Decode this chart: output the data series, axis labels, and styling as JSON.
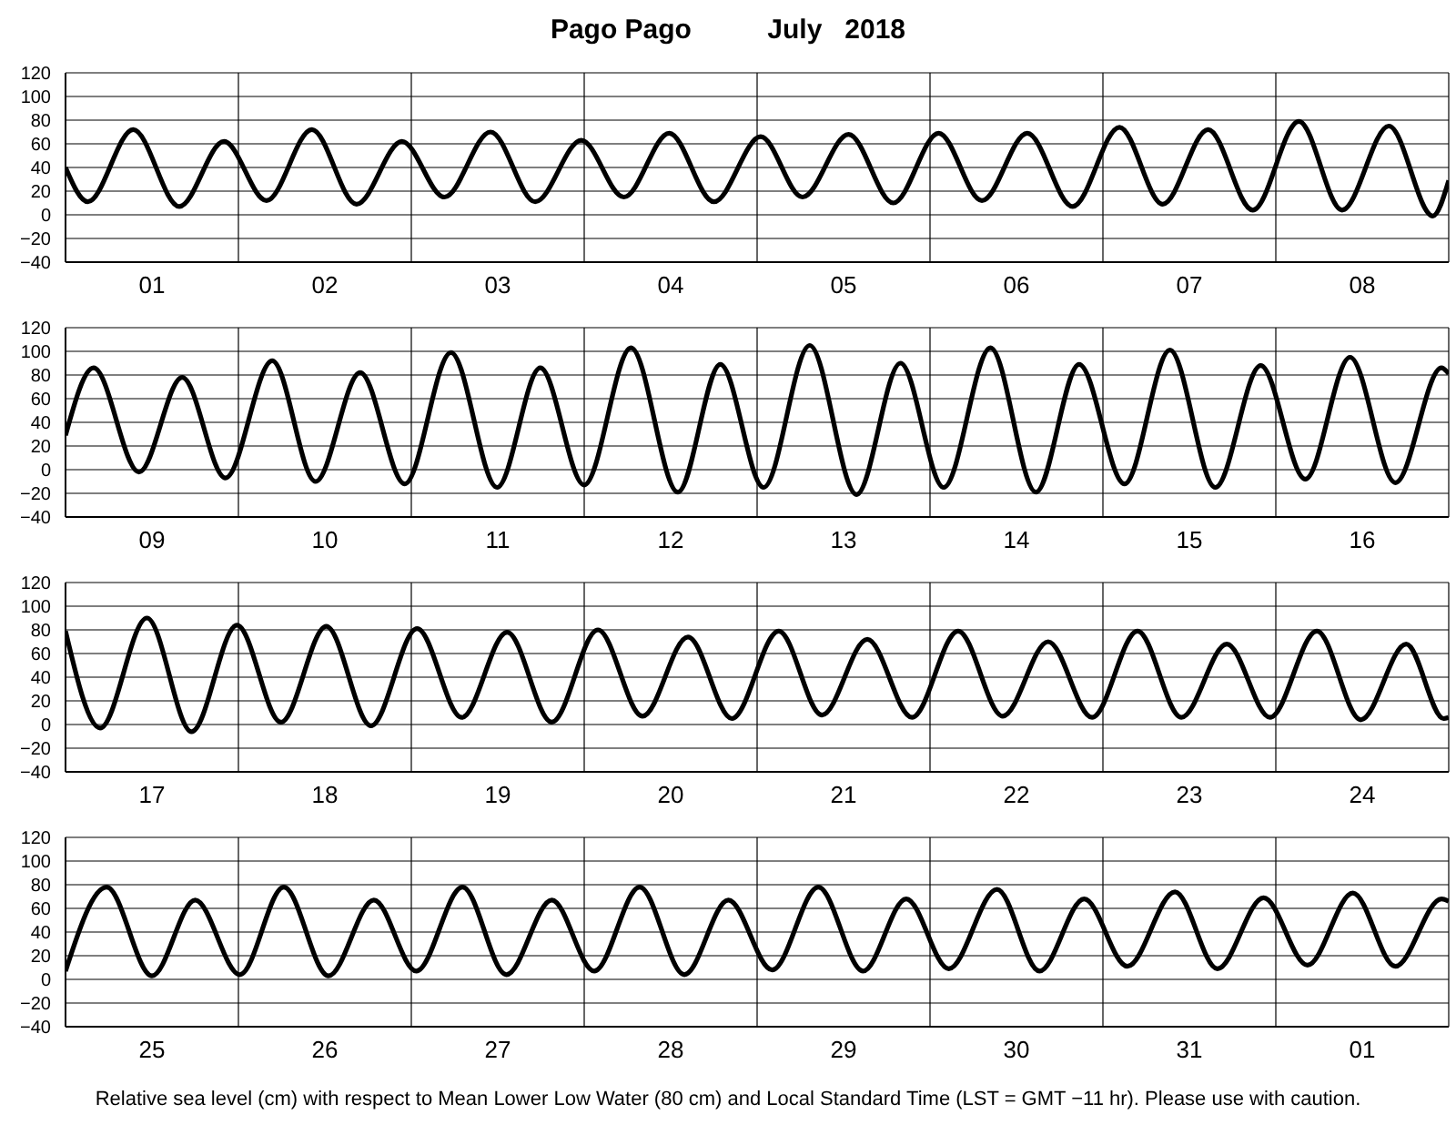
{
  "chart_data": [
    {
      "type": "line",
      "title": "Pago Pago          July   2018",
      "color": "#000000",
      "marker": "none",
      "line_style": "solid",
      "grid": true,
      "xlim": [
        "2018-07-01T00:00",
        "2018-07-09T00:00"
      ],
      "ylim": [
        -40,
        120
      ],
      "yticks": [
        -40,
        -20,
        0,
        20,
        40,
        60,
        80,
        100,
        120
      ],
      "xticks": [
        {
          "value": "2018-07-01T00:00",
          "label": null
        },
        {
          "value": "2018-07-01T12:00",
          "label": "01"
        },
        {
          "value": "2018-07-02T00:00",
          "label": null
        },
        {
          "value": "2018-07-02T12:00",
          "label": "02"
        },
        {
          "value": "2018-07-03T00:00",
          "label": null
        },
        {
          "value": "2018-07-03T12:00",
          "label": "03"
        },
        {
          "value": "2018-07-04T00:00",
          "label": null
        },
        {
          "value": "2018-07-04T12:00",
          "label": "04"
        },
        {
          "value": "2018-07-05T00:00",
          "label": null
        },
        {
          "value": "2018-07-05T12:00",
          "label": "05"
        },
        {
          "value": "2018-07-06T00:00",
          "label": null
        },
        {
          "value": "2018-07-06T12:00",
          "label": "06"
        },
        {
          "value": "2018-07-07T00:00",
          "label": null
        },
        {
          "value": "2018-07-07T12:00",
          "label": "07"
        },
        {
          "value": "2018-07-08T00:00",
          "label": null
        },
        {
          "value": "2018-07-08T12:00",
          "label": "08"
        },
        {
          "value": "2018-07-09T00:00",
          "label": null
        }
      ],
      "x": [
        "2018-07-01T00:00",
        "2018-07-01T03:06",
        "2018-07-01T09:24",
        "2018-07-01T15:48",
        "2018-07-01T22:00",
        "2018-07-02T03:54",
        "2018-07-02T10:12",
        "2018-07-02T16:24",
        "2018-07-02T22:42",
        "2018-07-03T04:36",
        "2018-07-03T11:00",
        "2018-07-03T17:12",
        "2018-07-03T23:36",
        "2018-07-04T05:30",
        "2018-07-04T11:48",
        "2018-07-04T18:00",
        "2018-07-05T00:30",
        "2018-07-05T06:18",
        "2018-07-05T12:42",
        "2018-07-05T18:54",
        "2018-07-06T01:12",
        "2018-07-06T07:12",
        "2018-07-06T13:30",
        "2018-07-06T19:48",
        "2018-07-07T02:18",
        "2018-07-07T08:18",
        "2018-07-07T14:36",
        "2018-07-07T20:48",
        "2018-07-08T03:12",
        "2018-07-08T09:12",
        "2018-07-08T15:42",
        "2018-07-08T21:48",
        "2018-07-09T00:00"
      ],
      "values": [
        40,
        11,
        72,
        7,
        62,
        12,
        72,
        9,
        62,
        15,
        70,
        11,
        63,
        15,
        69,
        11,
        66,
        15,
        68,
        10,
        69,
        12,
        69,
        7,
        74,
        9,
        72,
        4,
        79,
        4,
        75,
        -1,
        29
      ]
    },
    {
      "type": "line",
      "color": "#000000",
      "marker": "none",
      "line_style": "solid",
      "grid": true,
      "xlim": [
        "2018-07-09T00:00",
        "2018-07-17T00:00"
      ],
      "ylim": [
        -40,
        120
      ],
      "yticks": [
        -40,
        -20,
        0,
        20,
        40,
        60,
        80,
        100,
        120
      ],
      "xticks": [
        {
          "value": "2018-07-09T00:00",
          "label": null
        },
        {
          "value": "2018-07-09T12:00",
          "label": "09"
        },
        {
          "value": "2018-07-10T00:00",
          "label": null
        },
        {
          "value": "2018-07-10T12:00",
          "label": "10"
        },
        {
          "value": "2018-07-11T00:00",
          "label": null
        },
        {
          "value": "2018-07-11T12:00",
          "label": "11"
        },
        {
          "value": "2018-07-12T00:00",
          "label": null
        },
        {
          "value": "2018-07-12T12:00",
          "label": "12"
        },
        {
          "value": "2018-07-13T00:00",
          "label": null
        },
        {
          "value": "2018-07-13T12:00",
          "label": "13"
        },
        {
          "value": "2018-07-14T00:00",
          "label": null
        },
        {
          "value": "2018-07-14T12:00",
          "label": "14"
        },
        {
          "value": "2018-07-15T00:00",
          "label": null
        },
        {
          "value": "2018-07-15T12:00",
          "label": "15"
        },
        {
          "value": "2018-07-16T00:00",
          "label": null
        },
        {
          "value": "2018-07-16T12:00",
          "label": "16"
        },
        {
          "value": "2018-07-17T00:00",
          "label": null
        }
      ],
      "x": [
        "2018-07-09T00:00",
        "2018-07-09T03:54",
        "2018-07-09T10:12",
        "2018-07-09T16:12",
        "2018-07-09T22:12",
        "2018-07-10T04:42",
        "2018-07-10T10:42",
        "2018-07-10T16:54",
        "2018-07-10T23:06",
        "2018-07-11T05:30",
        "2018-07-11T11:54",
        "2018-07-11T17:54",
        "2018-07-12T00:00",
        "2018-07-12T06:30",
        "2018-07-12T13:00",
        "2018-07-12T18:54",
        "2018-07-13T00:54",
        "2018-07-13T07:18",
        "2018-07-13T13:48",
        "2018-07-13T19:54",
        "2018-07-14T01:54",
        "2018-07-14T08:24",
        "2018-07-14T14:42",
        "2018-07-14T20:42",
        "2018-07-15T03:00",
        "2018-07-15T09:18",
        "2018-07-15T15:36",
        "2018-07-15T21:54",
        "2018-07-16T04:06",
        "2018-07-16T10:18",
        "2018-07-16T16:36",
        "2018-07-16T23:00",
        "2018-07-17T00:00"
      ],
      "values": [
        29,
        86,
        -2,
        78,
        -7,
        92,
        -10,
        82,
        -12,
        99,
        -15,
        86,
        -13,
        103,
        -19,
        89,
        -15,
        105,
        -21,
        90,
        -15,
        103,
        -19,
        89,
        -12,
        101,
        -15,
        88,
        -8,
        95,
        -11,
        86,
        81
      ]
    },
    {
      "type": "line",
      "color": "#000000",
      "marker": "none",
      "line_style": "solid",
      "grid": true,
      "xlim": [
        "2018-07-17T00:00",
        "2018-07-25T00:00"
      ],
      "ylim": [
        -40,
        120
      ],
      "yticks": [
        -40,
        -20,
        0,
        20,
        40,
        60,
        80,
        100,
        120
      ],
      "xticks": [
        {
          "value": "2018-07-17T00:00",
          "label": null
        },
        {
          "value": "2018-07-17T12:00",
          "label": "17"
        },
        {
          "value": "2018-07-18T00:00",
          "label": null
        },
        {
          "value": "2018-07-18T12:00",
          "label": "18"
        },
        {
          "value": "2018-07-19T00:00",
          "label": null
        },
        {
          "value": "2018-07-19T12:00",
          "label": "19"
        },
        {
          "value": "2018-07-20T00:00",
          "label": null
        },
        {
          "value": "2018-07-20T12:00",
          "label": "20"
        },
        {
          "value": "2018-07-21T00:00",
          "label": null
        },
        {
          "value": "2018-07-21T12:00",
          "label": "21"
        },
        {
          "value": "2018-07-22T00:00",
          "label": null
        },
        {
          "value": "2018-07-22T12:00",
          "label": "22"
        },
        {
          "value": "2018-07-23T00:00",
          "label": null
        },
        {
          "value": "2018-07-23T12:00",
          "label": "23"
        },
        {
          "value": "2018-07-24T00:00",
          "label": null
        },
        {
          "value": "2018-07-24T12:00",
          "label": "24"
        },
        {
          "value": "2018-07-25T00:00",
          "label": null
        }
      ],
      "x": [
        "2018-07-17T00:00",
        "2018-07-17T04:48",
        "2018-07-17T11:18",
        "2018-07-17T17:30",
        "2018-07-17T23:48",
        "2018-07-18T05:54",
        "2018-07-18T12:12",
        "2018-07-18T18:24",
        "2018-07-19T00:48",
        "2018-07-19T07:00",
        "2018-07-19T13:18",
        "2018-07-19T19:30",
        "2018-07-20T01:54",
        "2018-07-20T08:06",
        "2018-07-20T14:24",
        "2018-07-20T20:30",
        "2018-07-21T03:00",
        "2018-07-21T09:00",
        "2018-07-21T15:18",
        "2018-07-21T21:30",
        "2018-07-22T03:54",
        "2018-07-22T10:06",
        "2018-07-22T16:24",
        "2018-07-22T22:30",
        "2018-07-23T04:48",
        "2018-07-23T10:54",
        "2018-07-23T17:12",
        "2018-07-23T23:12",
        "2018-07-24T05:42",
        "2018-07-24T11:48",
        "2018-07-24T18:06",
        "2018-07-24T23:18",
        "2018-07-25T00:00"
      ],
      "values": [
        79,
        -3,
        90,
        -6,
        84,
        2,
        83,
        -1,
        81,
        6,
        78,
        2,
        80,
        7,
        74,
        5,
        79,
        8,
        72,
        6,
        79,
        7,
        70,
        6,
        79,
        6,
        68,
        6,
        79,
        4,
        68,
        5,
        6
      ]
    },
    {
      "type": "line",
      "color": "#000000",
      "marker": "none",
      "line_style": "solid",
      "grid": true,
      "xlim": [
        "2018-07-25T00:00",
        "2018-08-02T00:00"
      ],
      "ylim": [
        -40,
        120
      ],
      "yticks": [
        -40,
        -20,
        0,
        20,
        40,
        60,
        80,
        100,
        120
      ],
      "xticks": [
        {
          "value": "2018-07-25T00:00",
          "label": null
        },
        {
          "value": "2018-07-25T12:00",
          "label": "25"
        },
        {
          "value": "2018-07-26T00:00",
          "label": null
        },
        {
          "value": "2018-07-26T12:00",
          "label": "26"
        },
        {
          "value": "2018-07-27T00:00",
          "label": null
        },
        {
          "value": "2018-07-27T12:00",
          "label": "27"
        },
        {
          "value": "2018-07-28T00:00",
          "label": null
        },
        {
          "value": "2018-07-28T12:00",
          "label": "28"
        },
        {
          "value": "2018-07-29T00:00",
          "label": null
        },
        {
          "value": "2018-07-29T12:00",
          "label": "29"
        },
        {
          "value": "2018-07-30T00:00",
          "label": null
        },
        {
          "value": "2018-07-30T12:00",
          "label": "30"
        },
        {
          "value": "2018-07-31T00:00",
          "label": null
        },
        {
          "value": "2018-07-31T12:00",
          "label": "31"
        },
        {
          "value": "2018-08-01T00:00",
          "label": null
        },
        {
          "value": "2018-08-01T12:00",
          "label": "01"
        },
        {
          "value": "2018-08-02T00:00",
          "label": null
        }
      ],
      "x": [
        "2018-07-25T00:00",
        "2018-07-25T05:42",
        "2018-07-25T12:00",
        "2018-07-25T18:00",
        "2018-07-26T00:12",
        "2018-07-26T06:18",
        "2018-07-26T12:30",
        "2018-07-26T18:48",
        "2018-07-27T00:42",
        "2018-07-27T07:06",
        "2018-07-27T13:12",
        "2018-07-27T19:30",
        "2018-07-28T01:24",
        "2018-07-28T07:42",
        "2018-07-28T13:54",
        "2018-07-28T20:00",
        "2018-07-29T02:06",
        "2018-07-29T08:30",
        "2018-07-29T14:42",
        "2018-07-29T20:42",
        "2018-07-30T02:36",
        "2018-07-30T09:18",
        "2018-07-30T15:12",
        "2018-07-30T21:24",
        "2018-07-31T03:24",
        "2018-07-31T10:00",
        "2018-07-31T15:54",
        "2018-07-31T22:18",
        "2018-08-01T04:24",
        "2018-08-01T10:42",
        "2018-08-01T16:36",
        "2018-08-01T23:00",
        "2018-08-02T00:00"
      ],
      "values": [
        7,
        78,
        3,
        67,
        4,
        78,
        3,
        67,
        7,
        78,
        4,
        67,
        7,
        78,
        4,
        67,
        8,
        78,
        7,
        68,
        9,
        76,
        7,
        68,
        11,
        74,
        9,
        69,
        12,
        73,
        11,
        68,
        66
      ],
      "annotations": [
        "Relative sea level (cm) with respect to Mean Lower Low Water (80 cm) and Local Standard Time (LST = GMT −11 hr). Please use with caution."
      ]
    }
  ]
}
